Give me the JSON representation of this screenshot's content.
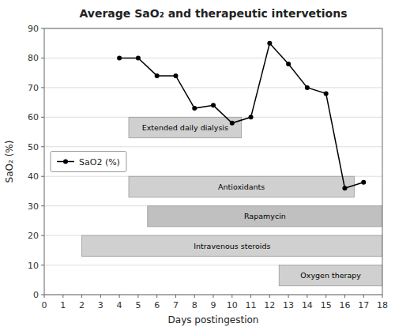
{
  "chart_data": {
    "type": "line",
    "title": "Average SaO₂ and therapeutic intervetions",
    "x_label": "Days postingestion",
    "y_label": "SaO₂ (%)",
    "x": [
      4,
      5,
      6,
      7,
      8,
      9,
      10,
      11,
      12,
      13,
      14,
      15,
      16,
      17
    ],
    "series": [
      {
        "name": "SaO2 (%)",
        "color": "black",
        "marker": "point",
        "values": [
          80,
          80,
          74,
          74,
          63,
          64,
          58,
          60,
          85,
          78,
          70,
          68,
          36,
          38
        ]
      }
    ],
    "bars": [
      {
        "label": "Extended daily dialysis",
        "x_start": 4.5,
        "x_end": 10.5,
        "y_bottom": 53,
        "y_top": 60,
        "color": "#d0d0d0"
      },
      {
        "label": "Antioxidants",
        "x_start": 4.5,
        "x_end": 16.5,
        "y_bottom": 33,
        "y_top": 40,
        "color": "#d0d0d0"
      },
      {
        "label": "Rapamycin",
        "x_start": 5.5,
        "x_end": 18.0,
        "y_bottom": 23,
        "y_top": 30,
        "color": "#c0c0c0"
      },
      {
        "label": "Intravenous steroids",
        "x_start": 2.0,
        "x_end": 18.0,
        "y_bottom": 13,
        "y_top": 20,
        "color": "#d0d0d0"
      },
      {
        "label": "Oxygen therapy",
        "x_start": 12.5,
        "x_end": 18.0,
        "y_bottom": 3,
        "y_top": 10,
        "color": "#d0d0d0"
      }
    ],
    "xlim": [
      0,
      18
    ],
    "ylim": [
      0,
      90
    ],
    "xticks": [
      0,
      1,
      2,
      3,
      4,
      5,
      6,
      7,
      8,
      9,
      10,
      11,
      12,
      13,
      14,
      15,
      16,
      17,
      18
    ],
    "yticks": [
      0,
      10,
      20,
      30,
      40,
      50,
      60,
      70,
      80,
      90
    ],
    "grid": true,
    "legend": "center left"
  }
}
